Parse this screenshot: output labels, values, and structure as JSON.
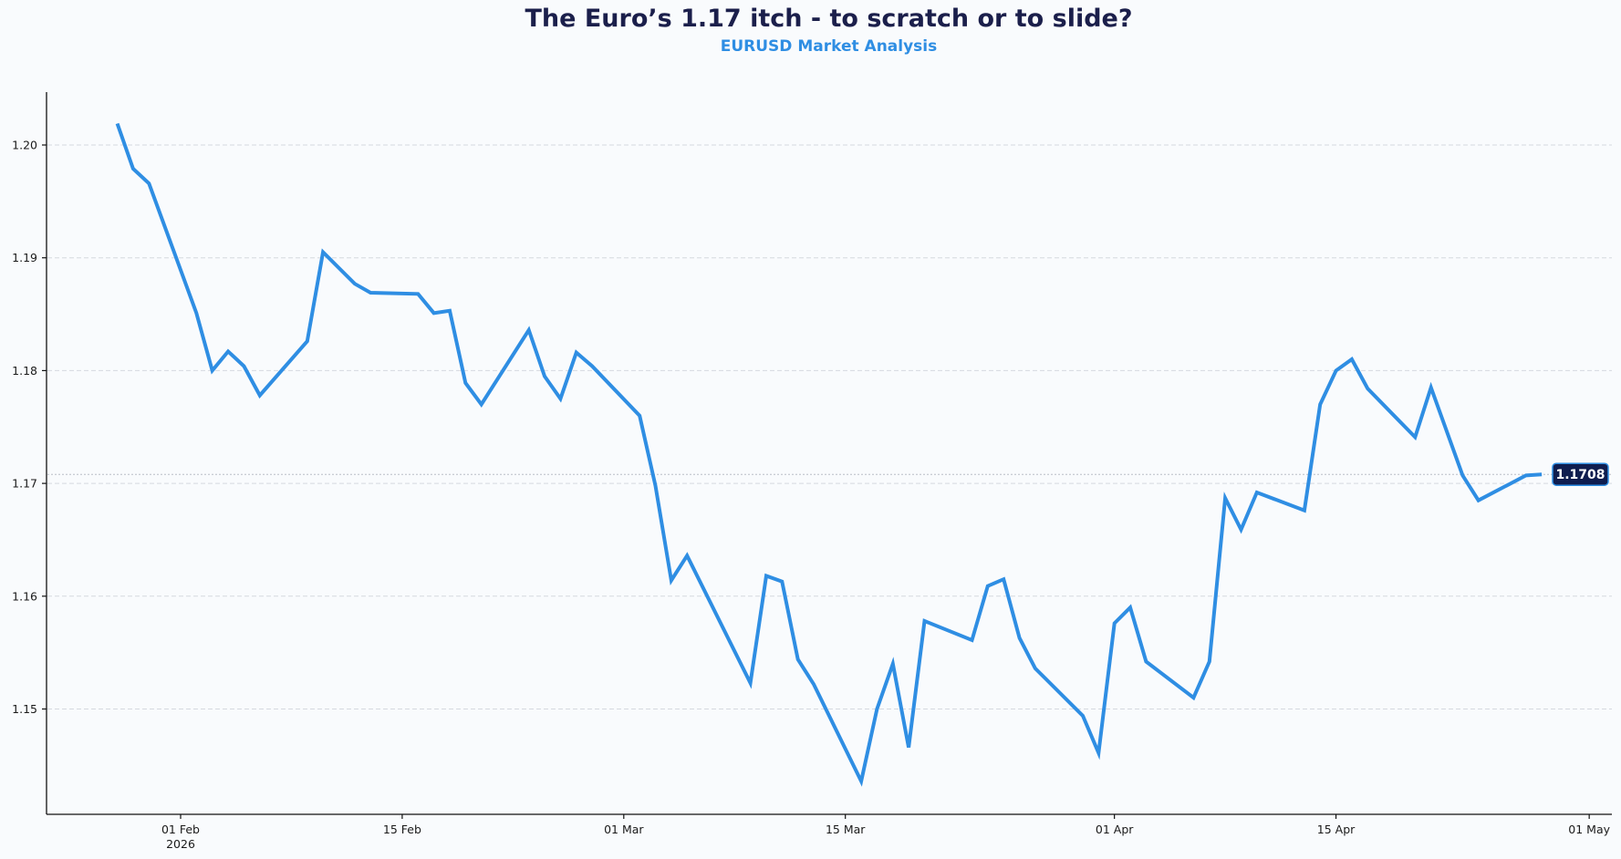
{
  "header": {
    "title": "The Euro’s 1.17 itch - to scratch or to slide?",
    "subtitle": "EURUSD Market Analysis"
  },
  "colors": {
    "background": "#f9fbfd",
    "title": "#1b1f4b",
    "subtitle": "#2f8ee3",
    "line": "#2f8ee3",
    "badge_fill": "#0f1d4f",
    "badge_border": "#2f8ee3",
    "grid": "#d5d9df"
  },
  "last_price_badge": "1.1708",
  "chart_data": {
    "type": "line",
    "title": "The Euro’s 1.17 itch - to scratch or to slide?",
    "subtitle": "EURUSD Market Analysis",
    "xlabel": "",
    "ylabel": "",
    "series": [
      {
        "name": "EURUSD",
        "x": [
          "2026-01-28",
          "2026-01-29",
          "2026-01-30",
          "2026-02-02",
          "2026-02-03",
          "2026-02-04",
          "2026-02-05",
          "2026-02-06",
          "2026-02-09",
          "2026-02-10",
          "2026-02-12",
          "2026-02-13",
          "2026-02-16",
          "2026-02-17",
          "2026-02-18",
          "2026-02-19",
          "2026-02-20",
          "2026-02-23",
          "2026-02-24",
          "2026-02-25",
          "2026-02-26",
          "2026-02-27",
          "2026-03-02",
          "2026-03-03",
          "2026-03-04",
          "2026-03-05",
          "2026-03-09",
          "2026-03-10",
          "2026-03-11",
          "2026-03-12",
          "2026-03-13",
          "2026-03-16",
          "2026-03-17",
          "2026-03-18",
          "2026-03-19",
          "2026-03-20",
          "2026-03-23",
          "2026-03-24",
          "2026-03-25",
          "2026-03-26",
          "2026-03-27",
          "2026-03-30",
          "2026-03-31",
          "2026-04-01",
          "2026-04-02",
          "2026-04-03",
          "2026-04-06",
          "2026-04-07",
          "2026-04-08",
          "2026-04-09",
          "2026-04-10",
          "2026-04-13",
          "2026-04-14",
          "2026-04-15",
          "2026-04-16",
          "2026-04-17",
          "2026-04-20",
          "2026-04-21",
          "2026-04-23",
          "2026-04-24",
          "2026-04-27",
          "2026-04-28"
        ],
        "values": [
          1.2019,
          1.1979,
          1.1966,
          1.1851,
          1.18,
          1.1817,
          1.1804,
          1.1778,
          1.1826,
          1.1905,
          1.1877,
          1.1869,
          1.1868,
          1.1851,
          1.1853,
          1.1789,
          1.177,
          1.1836,
          1.1795,
          1.1775,
          1.1816,
          1.1804,
          1.176,
          1.1698,
          1.1614,
          1.1636,
          1.1523,
          1.1618,
          1.1613,
          1.1544,
          1.1522,
          1.1436,
          1.15,
          1.154,
          1.1466,
          1.1578,
          1.1561,
          1.1609,
          1.1615,
          1.1563,
          1.1536,
          1.1494,
          1.1461,
          1.1576,
          1.159,
          1.1542,
          1.151,
          1.1542,
          1.1687,
          1.1659,
          1.1692,
          1.1676,
          1.177,
          1.18,
          1.181,
          1.1784,
          1.1741,
          1.1785,
          1.1707,
          1.1685,
          1.1707,
          1.1708
        ]
      }
    ],
    "y_ticks": [
      "1.15",
      "1.16",
      "1.17",
      "1.18",
      "1.19",
      "1.20"
    ],
    "x_ticks": [
      {
        "label": "01 Feb",
        "sublabel": "2026"
      },
      {
        "label": "15 Feb",
        "sublabel": ""
      },
      {
        "label": "01 Mar",
        "sublabel": ""
      },
      {
        "label": "15 Mar",
        "sublabel": ""
      },
      {
        "label": "01 Apr",
        "sublabel": ""
      },
      {
        "label": "15 Apr",
        "sublabel": ""
      },
      {
        "label": "01 May",
        "sublabel": ""
      }
    ],
    "ylim": [
      1.1405,
      1.2055
    ],
    "xlim": [
      "2026-01-24",
      "2026-05-02"
    ],
    "grid": "horizontal dashed",
    "annotations": [
      {
        "type": "last-price-label",
        "text": "1.1708",
        "value": 1.1708,
        "reference_line": "dotted"
      }
    ],
    "legend": "none"
  }
}
